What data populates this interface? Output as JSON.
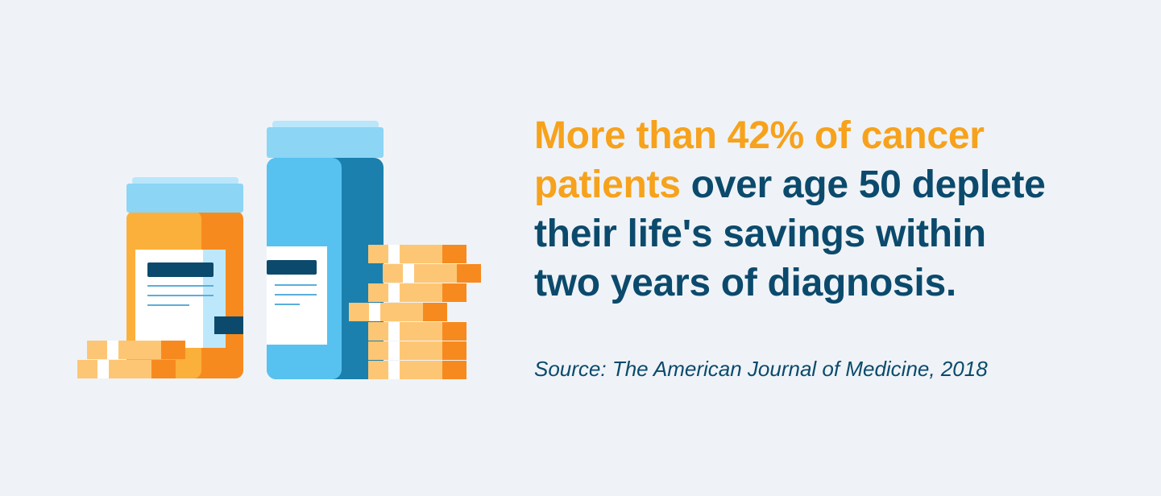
{
  "headline": {
    "line1_highlight": "More than 42% of cancer",
    "line2_highlight": "patients",
    "line2_rest": " over age 50 deplete",
    "line3": "their life's savings within",
    "line4": "two years of diagnosis."
  },
  "source": "Source: The American Journal of Medicine, 2018",
  "colors": {
    "background": "#eff3f7",
    "highlight": "#f7a21c",
    "text": "#0b4a6c",
    "orange_bottle": "#f78a1f",
    "blue_bottle": "#57c2f0",
    "cap": "#8cd5f5",
    "coin": "#fdc675"
  },
  "icons": [
    "orange-pill-bottle-icon",
    "blue-pill-bottle-icon",
    "coin-stack-icon"
  ]
}
